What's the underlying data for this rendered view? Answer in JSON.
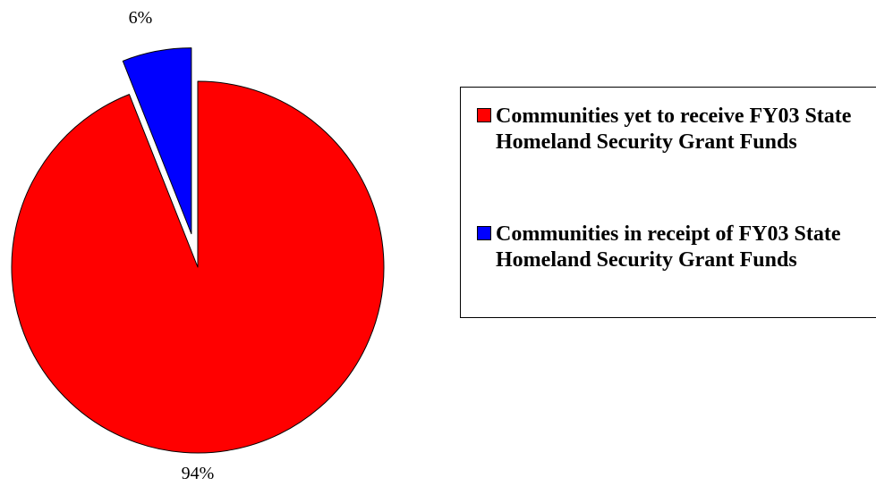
{
  "chart_data": {
    "type": "pie",
    "title": "",
    "legend_position": "right",
    "exploded_slice": 1,
    "slices": [
      {
        "label": "Communities yet to receive FY03 State Homeland Security Grant Funds",
        "value": 94,
        "value_label": "94%",
        "color": "#ff0000"
      },
      {
        "label": "Communities in receipt of FY03 State Homeland Security Grant Funds",
        "value": 6,
        "value_label": "6%",
        "color": "#0000ff"
      }
    ]
  }
}
